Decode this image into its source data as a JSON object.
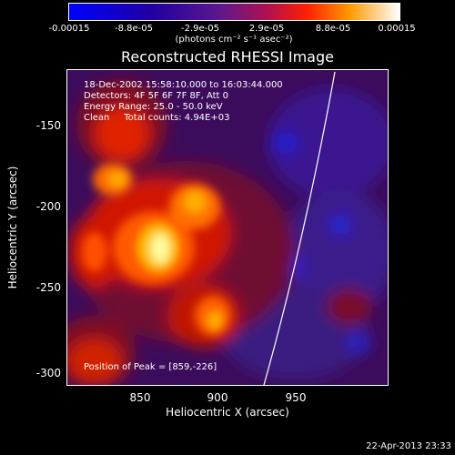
{
  "colorbar": {
    "ticks": [
      "-0.00015",
      "-8.8e-05",
      "-2.9e-05",
      "2.9e-05",
      "8.8e-05",
      "0.00015"
    ],
    "units": "(photons cm⁻² s⁻¹ asec⁻²)"
  },
  "title": "Reconstructed RHESSI Image",
  "info": {
    "line1": "18-Dec-2002 15:58:10.000 to 16:03:44.000",
    "line2": "Detectors: 4F 5F 6F 7F 8F, Att 0",
    "line3": "Energy Range: 25.0 - 50.0 keV",
    "line4": "Clean     Total counts: 4.94E+03",
    "peak": "Position of Peak = [859,-226]"
  },
  "axes": {
    "xlabel": "Heliocentric X (arcsec)",
    "ylabel": "Heliocentric Y (arcsec)",
    "xticks": [
      "850",
      "900",
      "950"
    ],
    "yticks": [
      "-150",
      "-200",
      "-250",
      "-300"
    ]
  },
  "footer": {
    "date": "22-Apr-2013 23:33"
  },
  "colors": {
    "background": "#000000",
    "foreground": "#ffffff"
  }
}
